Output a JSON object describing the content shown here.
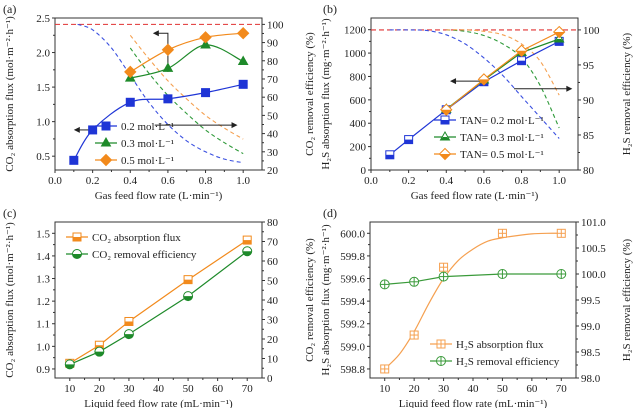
{
  "chart_data": [
    {
      "id": "a",
      "type": "line",
      "panel_label": "(a)",
      "xlabel": "Gas feed flow rate (L·min⁻¹)",
      "ylabel_left": "CO₂ absorption flux (mol·m⁻²·h⁻¹)",
      "ylabel_right": "CO₂ removal efficiency (%)",
      "xlim": [
        0.0,
        1.1
      ],
      "ylim_left": [
        0.3,
        2.5
      ],
      "ylim_right": [
        20,
        103.5
      ],
      "xticks": [
        "0.0",
        "0.2",
        "0.4",
        "0.6",
        "0.8",
        "1.0"
      ],
      "xtick_values": [
        0.0,
        0.2,
        0.4,
        0.6,
        0.8,
        1.0
      ],
      "yticks_left": [
        "0.5",
        "1.0",
        "1.5",
        "2.0",
        "2.5"
      ],
      "ytick_values_left": [
        0.5,
        1.0,
        1.5,
        2.0,
        2.5
      ],
      "yticks_right": [
        "20",
        "30",
        "40",
        "50",
        "60",
        "70",
        "80",
        "90",
        "100"
      ],
      "ytick_values_right": [
        20,
        30,
        40,
        50,
        60,
        70,
        80,
        90,
        100
      ],
      "legend_position": "bottom-left",
      "series": [
        {
          "name": "0.2 mol·L⁻¹",
          "color": "#1f35d6",
          "marker": "square-filled",
          "axis": "left",
          "x": [
            0.1,
            0.2,
            0.4,
            0.6,
            0.8,
            1.0
          ],
          "values": [
            0.44,
            0.88,
            1.28,
            1.33,
            1.42,
            1.54
          ]
        },
        {
          "name": "0.3 mol·L⁻¹",
          "color": "#1e8a2a",
          "marker": "triangle-filled",
          "axis": "left",
          "x": [
            0.4,
            0.6,
            0.8,
            1.0
          ],
          "values": [
            1.63,
            1.77,
            2.11,
            1.87
          ]
        },
        {
          "name": "0.5 mol·L⁻¹",
          "color": "#f28a1c",
          "marker": "diamond-filled",
          "axis": "left",
          "x": [
            0.4,
            0.6,
            0.8,
            1.0
          ],
          "values": [
            1.72,
            2.04,
            2.22,
            2.28
          ]
        }
      ],
      "efficiency_curves": [
        {
          "name": "0.2 mol·L⁻¹ efficiency",
          "color": "#3a50e0",
          "axis": "right",
          "x": [
            0.12,
            0.2,
            0.3,
            0.4,
            0.5,
            0.6,
            0.7,
            0.8,
            0.9,
            1.0
          ],
          "values": [
            100,
            97,
            87,
            72,
            57,
            45,
            36,
            30,
            26,
            24
          ]
        },
        {
          "name": "0.3 mol·L⁻¹ efficiency",
          "color": "#2f9a3a",
          "axis": "right",
          "x": [
            0.4,
            0.5,
            0.6,
            0.7,
            0.8,
            0.9,
            1.0
          ],
          "values": [
            87,
            73,
            61,
            51,
            42,
            35,
            29
          ]
        },
        {
          "name": "0.5 mol·L⁻¹ efficiency",
          "color": "#f5a050",
          "axis": "right",
          "x": [
            0.4,
            0.5,
            0.6,
            0.7,
            0.8,
            0.9,
            1.0
          ],
          "values": [
            94,
            81,
            69,
            59,
            50,
            43,
            37
          ]
        }
      ],
      "reference_line": {
        "axis": "right",
        "value": 100,
        "color": "#e03030"
      },
      "arrows": [
        {
          "direction": "left",
          "desc": "points to left axis",
          "from_x": 0.2,
          "to_x": 0.1,
          "at_left": 0.88
        },
        {
          "direction": "left",
          "desc": "points to left axis",
          "elbow_x": 0.6,
          "from_left": 1.72,
          "to_left": 2.28,
          "to_x": 0.52
        },
        {
          "direction": "right",
          "desc": "points to right axis",
          "from_x": 0.53,
          "to_x": 0.97,
          "at_left": 0.95
        }
      ]
    },
    {
      "id": "b",
      "type": "line",
      "panel_label": "(b)",
      "xlabel": "Gas feed flow rate (L·min⁻¹)",
      "ylabel_left": "H₂S absorption flux (mg·m⁻²·h⁻¹)",
      "ylabel_right": "H₂S removal efficiency (%)",
      "xlim": [
        0.0,
        1.1
      ],
      "ylim_left": [
        0,
        1300
      ],
      "ylim_right": [
        80,
        101.7
      ],
      "xticks": [
        "0.0",
        "0.2",
        "0.4",
        "0.6",
        "0.8",
        "1.0"
      ],
      "xtick_values": [
        0.0,
        0.2,
        0.4,
        0.6,
        0.8,
        1.0
      ],
      "yticks_left": [
        "0",
        "200",
        "400",
        "600",
        "800",
        "1000",
        "1200"
      ],
      "ytick_values_left": [
        0,
        200,
        400,
        600,
        800,
        1000,
        1200
      ],
      "yticks_right": [
        "80",
        "85",
        "90",
        "95",
        "100"
      ],
      "ytick_values_right": [
        80,
        85,
        90,
        95,
        100
      ],
      "legend_position": "bottom-center",
      "series": [
        {
          "name": "TAN= 0.2 mol·L⁻¹",
          "color": "#1f35d6",
          "marker": "square-half",
          "axis": "left",
          "x": [
            0.1,
            0.2,
            0.4,
            0.6,
            0.8,
            1.0
          ],
          "values": [
            130,
            260,
            515,
            755,
            935,
            1100
          ]
        },
        {
          "name": "TAN= 0.3 mol·L⁻¹",
          "color": "#1e8a2a",
          "marker": "triangle-half",
          "axis": "left",
          "x": [
            0.4,
            0.6,
            0.8,
            1.0
          ],
          "values": [
            520,
            770,
            1005,
            1120
          ]
        },
        {
          "name": "TAN= 0.5 mol·L⁻¹",
          "color": "#f28a1c",
          "marker": "diamond-half",
          "axis": "left",
          "x": [
            0.4,
            0.6,
            0.8,
            1.0
          ],
          "values": [
            515,
            775,
            1020,
            1180
          ]
        }
      ],
      "efficiency_curves": [
        {
          "name": "TAN 0.2 efficiency",
          "color": "#3a50e0",
          "axis": "right",
          "x": [
            0.1,
            0.2,
            0.3,
            0.4,
            0.5,
            0.6,
            0.7,
            0.8,
            0.9,
            1.0
          ],
          "values": [
            100,
            100,
            99.9,
            99.3,
            98,
            96,
            93.5,
            90.5,
            87.5,
            84.5
          ]
        },
        {
          "name": "TAN 0.3 efficiency",
          "color": "#2f9a3a",
          "axis": "right",
          "x": [
            0.4,
            0.5,
            0.6,
            0.7,
            0.8,
            0.9,
            1.0
          ],
          "values": [
            100,
            99.8,
            99.2,
            98,
            96,
            92,
            86
          ]
        },
        {
          "name": "TAN 0.5 efficiency",
          "color": "#f5a050",
          "axis": "right",
          "x": [
            0.4,
            0.5,
            0.6,
            0.7,
            0.8,
            0.9,
            1.0
          ],
          "values": [
            100,
            100,
            99.8,
            99.3,
            98,
            95.5,
            90.7
          ]
        }
      ],
      "reference_line": {
        "axis": "right",
        "value": 100,
        "color": "#e03030"
      },
      "arrows": [
        {
          "direction": "left",
          "desc": "points to left axis",
          "from_x": 0.62,
          "to_x": 0.42,
          "at_left": 760
        },
        {
          "direction": "right",
          "desc": "points to right axis",
          "from_x": 0.76,
          "to_x": 1.07,
          "at_left": 695
        }
      ]
    },
    {
      "id": "c",
      "type": "line",
      "panel_label": "(c)",
      "xlabel": "Liquid feed flow rate (mL·min⁻¹)",
      "ylabel_left": "CO₂ absorption flux (mol·m⁻²·h⁻¹)",
      "ylabel_right": "CO₂ removal efficiency (%)",
      "xlim": [
        5,
        75
      ],
      "ylim_left": [
        0.86,
        1.55
      ],
      "ylim_right": [
        0,
        80
      ],
      "xticks": [
        "10",
        "20",
        "30",
        "40",
        "50",
        "60",
        "70"
      ],
      "xtick_values": [
        10,
        20,
        30,
        40,
        50,
        60,
        70
      ],
      "yticks_left": [
        "0.9",
        "1.0",
        "1.1",
        "1.2",
        "1.3",
        "1.4",
        "1.5"
      ],
      "ytick_values_left": [
        0.9,
        1.0,
        1.1,
        1.2,
        1.3,
        1.4,
        1.5
      ],
      "yticks_right": [
        "0",
        "10",
        "20",
        "30",
        "40",
        "50",
        "60",
        "70",
        "80"
      ],
      "ytick_values_right": [
        0,
        10,
        20,
        30,
        40,
        50,
        60,
        70,
        80
      ],
      "legend_position": "top-left",
      "series": [
        {
          "name": "CO₂ absorption flux",
          "color": "#f28a1c",
          "marker": "square-half",
          "axis": "left",
          "x": [
            10,
            20,
            30,
            50,
            70
          ],
          "values": [
            0.925,
            1.005,
            1.11,
            1.295,
            1.47
          ]
        },
        {
          "name": "CO₂ removal efficiency",
          "color": "#1e8a2a",
          "marker": "circle-half",
          "axis": "right",
          "x": [
            10,
            20,
            30,
            50,
            70
          ],
          "values": [
            7,
            13.5,
            22.5,
            42,
            65
          ]
        }
      ]
    },
    {
      "id": "d",
      "type": "line",
      "panel_label": "(d)",
      "xlabel": "Liquid feed flow rate (mL·min⁻¹)",
      "ylabel_left": "H₂S absorption flux (mg·m⁻²·h⁻¹)",
      "ylabel_right": "H₂S removal efficiency (%)",
      "xlim": [
        5,
        75
      ],
      "ylim_left": [
        598.72,
        600.1
      ],
      "ylim_right": [
        98.0,
        101.0
      ],
      "xticks": [
        "10",
        "20",
        "30",
        "40",
        "50",
        "60",
        "70"
      ],
      "xtick_values": [
        10,
        20,
        30,
        40,
        50,
        60,
        70
      ],
      "yticks_left": [
        "598.8",
        "599.0",
        "599.2",
        "599.4",
        "599.6",
        "599.8",
        "600.0"
      ],
      "ytick_values_left": [
        598.8,
        599.0,
        599.2,
        599.4,
        599.6,
        599.8,
        600.0
      ],
      "yticks_right": [
        "98.0",
        "98.5",
        "99.0",
        "99.5",
        "100.0",
        "100.5",
        "101.0"
      ],
      "ytick_values_right": [
        98.0,
        98.5,
        99.0,
        99.5,
        100.0,
        100.5,
        101.0
      ],
      "legend_position": "bottom-right",
      "series": [
        {
          "name": "H₂S absorption flux",
          "color": "#f5a050",
          "marker": "square-cross",
          "axis": "left",
          "x": [
            10,
            20,
            30,
            50,
            70
          ],
          "values": [
            598.8,
            599.1,
            599.7,
            600.0,
            600.0
          ],
          "fit": {
            "x": [
              10,
              15,
              20,
              25,
              30,
              35,
              40,
              45,
              50,
              55,
              60,
              65,
              70
            ],
            "values": [
              598.8,
              598.93,
              599.13,
              599.38,
              599.6,
              599.76,
              599.86,
              599.93,
              599.96,
              599.98,
              599.995,
              600.0,
              600.0
            ]
          }
        },
        {
          "name": "H₂S removal efficiency",
          "color": "#3a9a3a",
          "marker": "circle-cross",
          "axis": "right",
          "x": [
            10,
            20,
            30,
            50,
            70
          ],
          "values": [
            99.8,
            99.85,
            99.95,
            100.0,
            100.0
          ]
        }
      ]
    }
  ]
}
